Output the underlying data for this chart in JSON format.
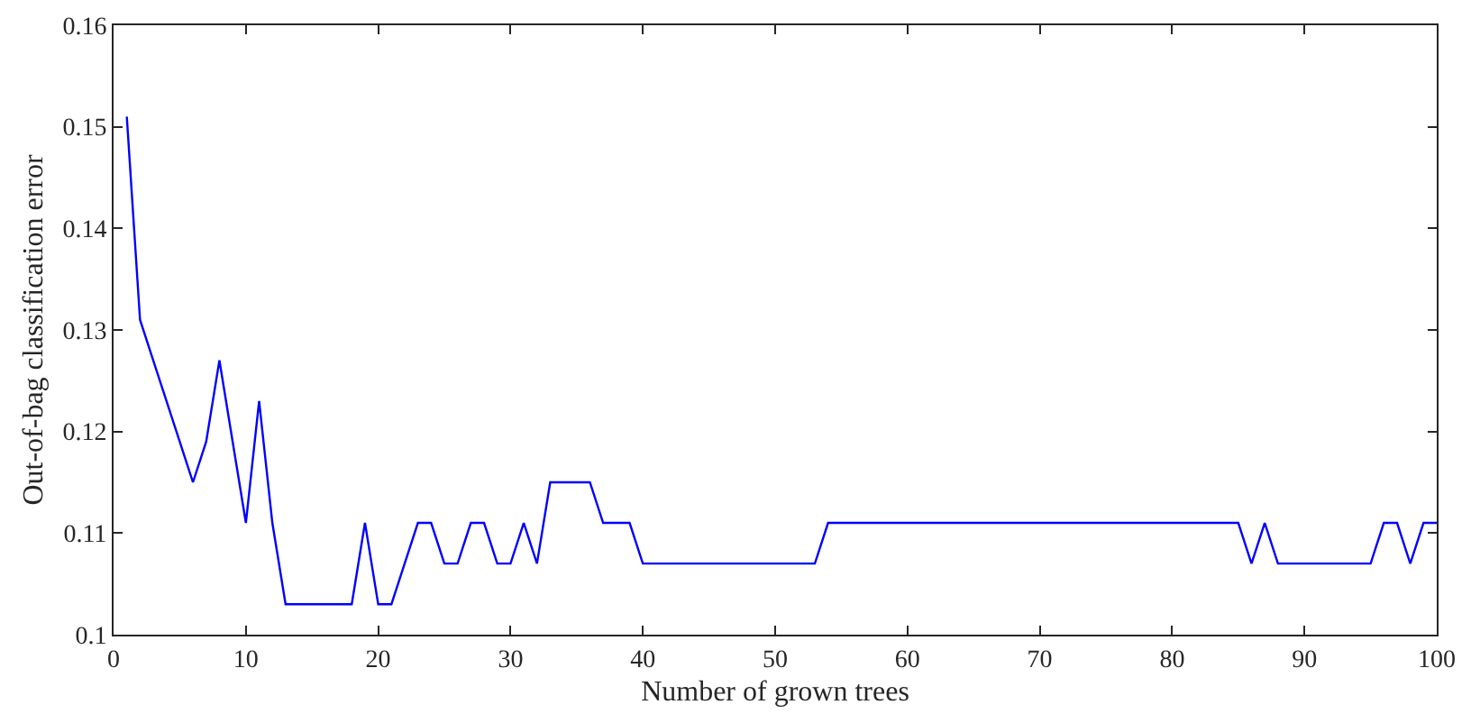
{
  "chart_data": {
    "type": "line",
    "xlabel": "Number of grown trees",
    "ylabel": "Out-of-bag classification error",
    "x": [
      1,
      2,
      3,
      4,
      5,
      6,
      7,
      8,
      9,
      10,
      11,
      12,
      13,
      14,
      15,
      16,
      17,
      18,
      19,
      20,
      21,
      22,
      23,
      24,
      25,
      26,
      27,
      28,
      29,
      30,
      31,
      32,
      33,
      34,
      35,
      36,
      37,
      38,
      39,
      40,
      41,
      42,
      43,
      44,
      45,
      46,
      47,
      48,
      49,
      50,
      51,
      52,
      53,
      54,
      55,
      56,
      57,
      58,
      59,
      60,
      61,
      62,
      63,
      64,
      65,
      66,
      67,
      68,
      69,
      70,
      71,
      72,
      73,
      74,
      75,
      76,
      77,
      78,
      79,
      80,
      81,
      82,
      83,
      84,
      85,
      86,
      87,
      88,
      89,
      90,
      91,
      92,
      93,
      94,
      95,
      96,
      97,
      98,
      99,
      100
    ],
    "series": [
      {
        "color": "#0000ff",
        "values": [
          0.151,
          0.131,
          0.127,
          0.123,
          0.119,
          0.115,
          0.119,
          0.127,
          0.119,
          0.111,
          0.123,
          0.111,
          0.103,
          0.103,
          0.103,
          0.103,
          0.103,
          0.103,
          0.111,
          0.103,
          0.103,
          0.107,
          0.111,
          0.111,
          0.107,
          0.107,
          0.111,
          0.111,
          0.107,
          0.107,
          0.111,
          0.107,
          0.115,
          0.115,
          0.115,
          0.115,
          0.111,
          0.111,
          0.111,
          0.107,
          0.107,
          0.107,
          0.107,
          0.107,
          0.107,
          0.107,
          0.107,
          0.107,
          0.107,
          0.107,
          0.107,
          0.107,
          0.107,
          0.111,
          0.111,
          0.111,
          0.111,
          0.111,
          0.111,
          0.111,
          0.111,
          0.111,
          0.111,
          0.111,
          0.111,
          0.111,
          0.111,
          0.111,
          0.111,
          0.111,
          0.111,
          0.111,
          0.111,
          0.111,
          0.111,
          0.111,
          0.111,
          0.111,
          0.111,
          0.111,
          0.111,
          0.111,
          0.111,
          0.111,
          0.111,
          0.107,
          0.111,
          0.107,
          0.107,
          0.107,
          0.107,
          0.107,
          0.107,
          0.107,
          0.107,
          0.111,
          0.111,
          0.107,
          0.111,
          0.111
        ]
      }
    ],
    "xlim": [
      0,
      100
    ],
    "xticks": [
      0,
      10,
      20,
      30,
      40,
      50,
      60,
      70,
      80,
      90,
      100
    ],
    "ylim": [
      0.1,
      0.16
    ],
    "yticks": [
      0.1,
      0.11,
      0.12,
      0.13,
      0.14,
      0.15,
      0.16
    ],
    "marker": "none",
    "line_style": "solid"
  }
}
